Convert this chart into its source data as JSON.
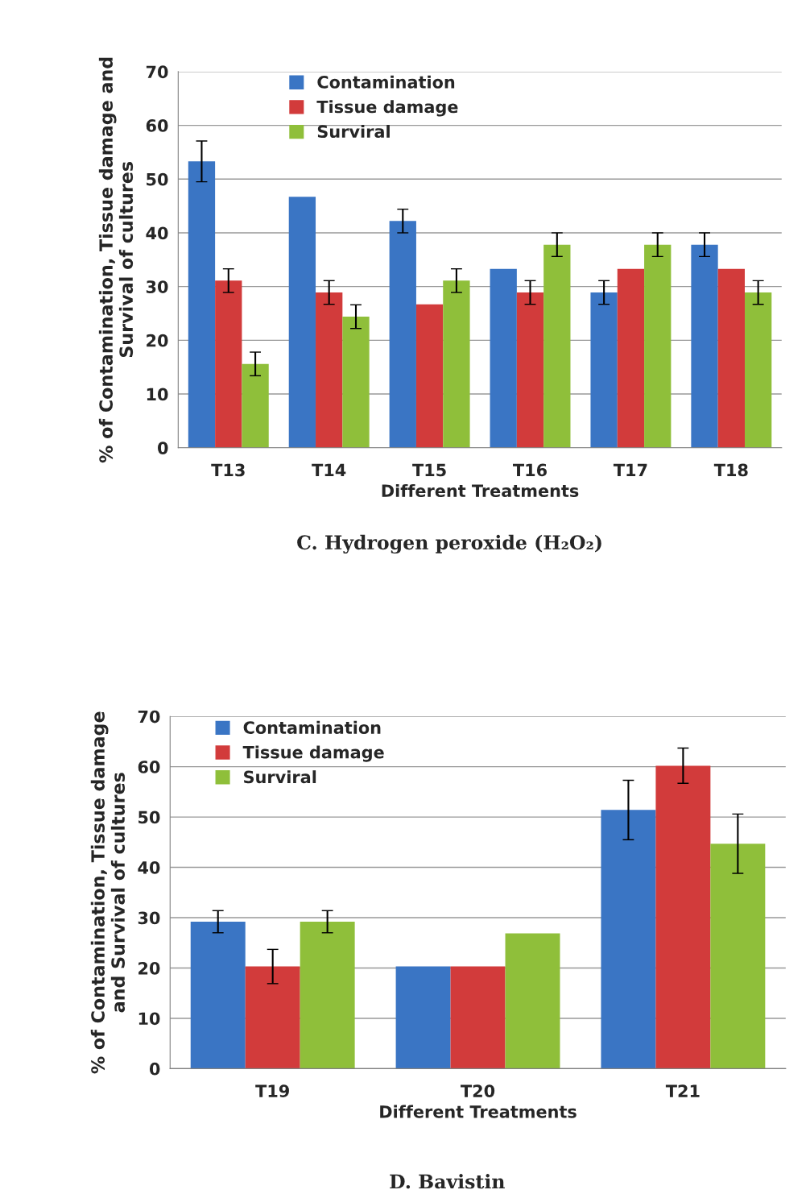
{
  "chart_data": [
    {
      "type": "bar",
      "title": "C. Hydrogen peroxide (H₂O₂)",
      "xlabel": "Different Treatments",
      "ylabel": "% of Contamination, Tissue damage and\nSurvival of cultures",
      "categories": [
        "T13",
        "T14",
        "T15",
        "T16",
        "T17",
        "T18"
      ],
      "ylim": [
        0,
        70
      ],
      "yticks": [
        0,
        10,
        20,
        30,
        40,
        50,
        60,
        70
      ],
      "grid": "y",
      "legend": "top left",
      "series": [
        {
          "name": "Contamination",
          "color": "#3a75c4",
          "values": [
            53.3,
            46.7,
            42.2,
            33.3,
            28.9,
            37.8
          ],
          "errors": [
            3.8,
            null,
            2.2,
            null,
            2.2,
            2.2
          ]
        },
        {
          "name": "Tissue damage",
          "color": "#d23b3b",
          "values": [
            31.1,
            28.9,
            26.7,
            28.9,
            33.3,
            33.3
          ],
          "errors": [
            2.2,
            2.2,
            null,
            2.2,
            null,
            null
          ]
        },
        {
          "name": "Surviral",
          "color": "#8fbf3a",
          "values": [
            15.6,
            24.4,
            31.1,
            37.8,
            37.8,
            28.9
          ],
          "errors": [
            2.2,
            2.2,
            2.2,
            2.2,
            2.2,
            2.2
          ]
        }
      ]
    },
    {
      "type": "bar",
      "title": "D. Bavistin",
      "xlabel": "Different Treatments",
      "ylabel": "% of Contamination, Tissue damage\nand Survival of cultures",
      "categories": [
        "T19",
        "T20",
        "T21"
      ],
      "ylim": [
        0,
        70
      ],
      "yticks": [
        0,
        10,
        20,
        30,
        40,
        50,
        60,
        70
      ],
      "grid": "y",
      "legend": "top left",
      "series": [
        {
          "name": "Contamination",
          "color": "#3a75c4",
          "values": [
            29.2,
            20.3,
            51.4
          ],
          "errors": [
            2.2,
            null,
            5.9
          ]
        },
        {
          "name": "Tissue damage",
          "color": "#d23b3b",
          "values": [
            20.3,
            20.3,
            60.2
          ],
          "errors": [
            3.4,
            null,
            3.5
          ]
        },
        {
          "name": "Surviral",
          "color": "#8fbf3a",
          "values": [
            29.2,
            26.9,
            44.7
          ],
          "errors": [
            2.2,
            null,
            5.9
          ]
        }
      ]
    }
  ]
}
